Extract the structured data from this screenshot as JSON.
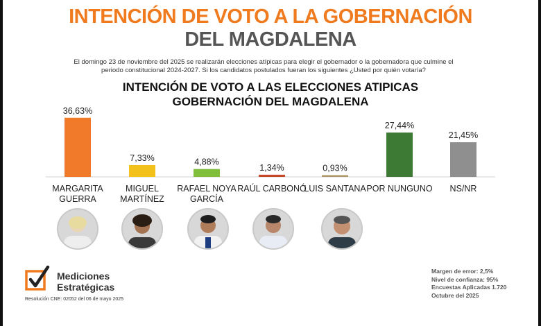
{
  "header": {
    "title_line1": "INTENCIÓN DE VOTO A LA GOBERNACIÓN",
    "title_line2": "DEL MAGDALENA",
    "description": "El domingo 23 de noviembre del 2025 se realizarán elecciones atípicas para elegir el gobernador o la gobernadora que culmine el periodo constitucional 2024-2027. Si los candidatos postulados fueran los siguientes ¿Usted por quién votaría?"
  },
  "chart_data": {
    "type": "bar",
    "title": "INTENCIÓN DE VOTO A LAS ELECCIONES ATIPICAS",
    "subtitle": "GOBERNACIÓN DEL MAGDALENA",
    "categories": [
      [
        "MARGARITA",
        "GUERRA"
      ],
      [
        "MIGUEL",
        "MARTÍNEZ"
      ],
      [
        "RAFAEL NOYA",
        "GARCÍA"
      ],
      [
        "RAÚL CARBONÓ"
      ],
      [
        "LUIS SANTANA"
      ],
      [
        "POR NUNGUNO"
      ],
      [
        "NS/NR"
      ]
    ],
    "values": [
      36.63,
      7.33,
      4.88,
      1.34,
      0.93,
      27.44,
      21.45
    ],
    "value_labels": [
      "36,63%",
      "7,33%",
      "4,88%",
      "1,34%",
      "0,93%",
      "27,44%",
      "21,45%"
    ],
    "colors": [
      "#f07a2a",
      "#f2c11c",
      "#7fbf3c",
      "#c44a2a",
      "#b09a6a",
      "#3d7a33",
      "#8f8f8f"
    ],
    "ylim": [
      0,
      40
    ],
    "xlabel": "",
    "ylabel": ""
  },
  "candidates_with_photos": [
    "Margarita Guerra",
    "Miguel Martínez",
    "Rafael Noya García",
    "Raúl Carbonó",
    "Luis Santana"
  ],
  "footer": {
    "brand_line1": "Mediciones",
    "brand_line2": "Estratégicas",
    "resolution": "Resolución CNE: 02052 del 06 de mayo 2025",
    "notes": [
      "Margen de error: 2,5%",
      "Nivel de confianza: 95%",
      "Encuestas Aplicadas 1.720",
      "Octubre del 2025"
    ]
  },
  "colors": {
    "accent_orange": "#f07a1e",
    "title_gray": "#555555"
  }
}
